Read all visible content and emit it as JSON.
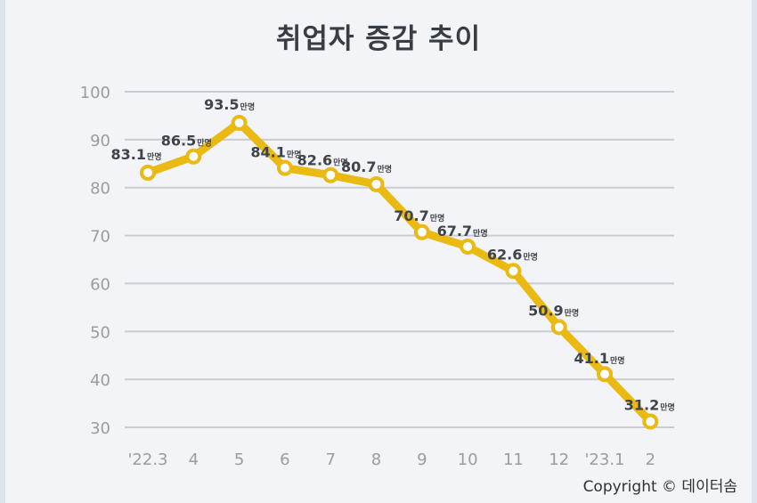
{
  "title": "취업자 증감 추이",
  "copyright": "Copyright © 데이터솜",
  "colors": {
    "line": "#eab912",
    "marker_fill": "#ffffff",
    "grid": "#c9ccd2",
    "axis_text": "#9a9ca2",
    "label_text": "#3f434b",
    "background": "#f2f4f7"
  },
  "chart_data": {
    "type": "line",
    "title": "취업자 증감 추이",
    "xlabel": "",
    "ylabel": "",
    "ylim": [
      30,
      100
    ],
    "yticks": [
      100,
      90,
      80,
      70,
      60,
      50,
      40,
      30
    ],
    "grid": true,
    "unit": "만명",
    "categories": [
      "'22.3",
      "4",
      "5",
      "6",
      "7",
      "8",
      "9",
      "10",
      "11",
      "12",
      "'23.1",
      "2"
    ],
    "values": [
      83.1,
      86.5,
      93.5,
      84.1,
      82.6,
      80.7,
      70.7,
      67.7,
      62.6,
      50.9,
      41.1,
      31.2
    ],
    "labels": [
      "83.1",
      "86.5",
      "93.5",
      "84.1",
      "82.6",
      "80.7",
      "70.7",
      "67.7",
      "62.6",
      "50.9",
      "41.1",
      "31.2"
    ]
  }
}
